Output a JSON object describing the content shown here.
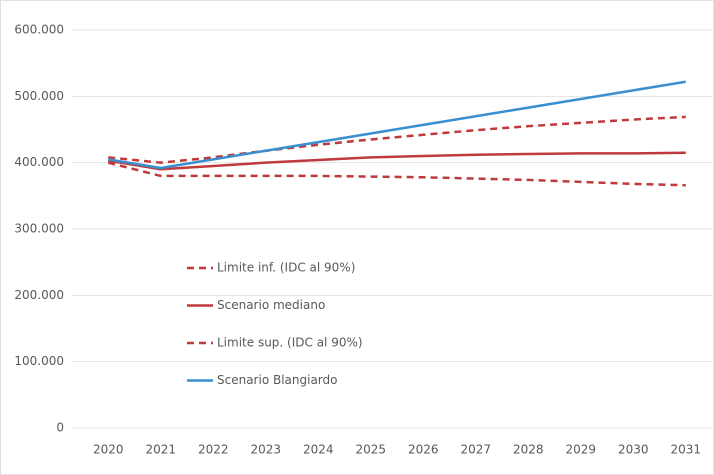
{
  "chart_data": {
    "type": "line",
    "categories": [
      "2020",
      "2021",
      "2022",
      "2023",
      "2024",
      "2025",
      "2026",
      "2027",
      "2028",
      "2029",
      "2030",
      "2031"
    ],
    "series": [
      {
        "name": "Limite inf. (IDC al 90%)",
        "color": "#c0393b",
        "dash": true,
        "values": [
          400000,
          380000,
          380000,
          380000,
          380000,
          379000,
          378000,
          376000,
          374000,
          371000,
          368000,
          366000
        ]
      },
      {
        "name": "Scenario mediano",
        "color": "#c0393b",
        "dash": false,
        "values": [
          403000,
          390000,
          395000,
          400000,
          404000,
          408000,
          410000,
          412000,
          413000,
          414000,
          414000,
          415000
        ]
      },
      {
        "name": "Limite sup. (IDC al 90%)",
        "color": "#c0393b",
        "dash": true,
        "values": [
          408000,
          400000,
          408000,
          418000,
          427000,
          435000,
          442000,
          449000,
          455000,
          460000,
          465000,
          469000
        ]
      },
      {
        "name": "Scenario Blangiardo",
        "color": "#3a8fd0",
        "dash": false,
        "values": [
          405000,
          392000,
          405000,
          418000,
          431000,
          444000,
          457000,
          470000,
          483000,
          496000,
          509000,
          522000
        ]
      }
    ],
    "ylim": [
      0,
      600000
    ],
    "yticks": [
      0,
      {
        "value": 100000,
        "label": "100.000"
      },
      {
        "value": 200000,
        "label": "200.000"
      },
      {
        "value": 300000,
        "label": "300.000"
      },
      {
        "value": 400000,
        "label": "400.000"
      },
      {
        "value": 500000,
        "label": "500.000"
      },
      {
        "value": 600000,
        "label": "600.000"
      }
    ],
    "grid": true,
    "legend": "left"
  }
}
